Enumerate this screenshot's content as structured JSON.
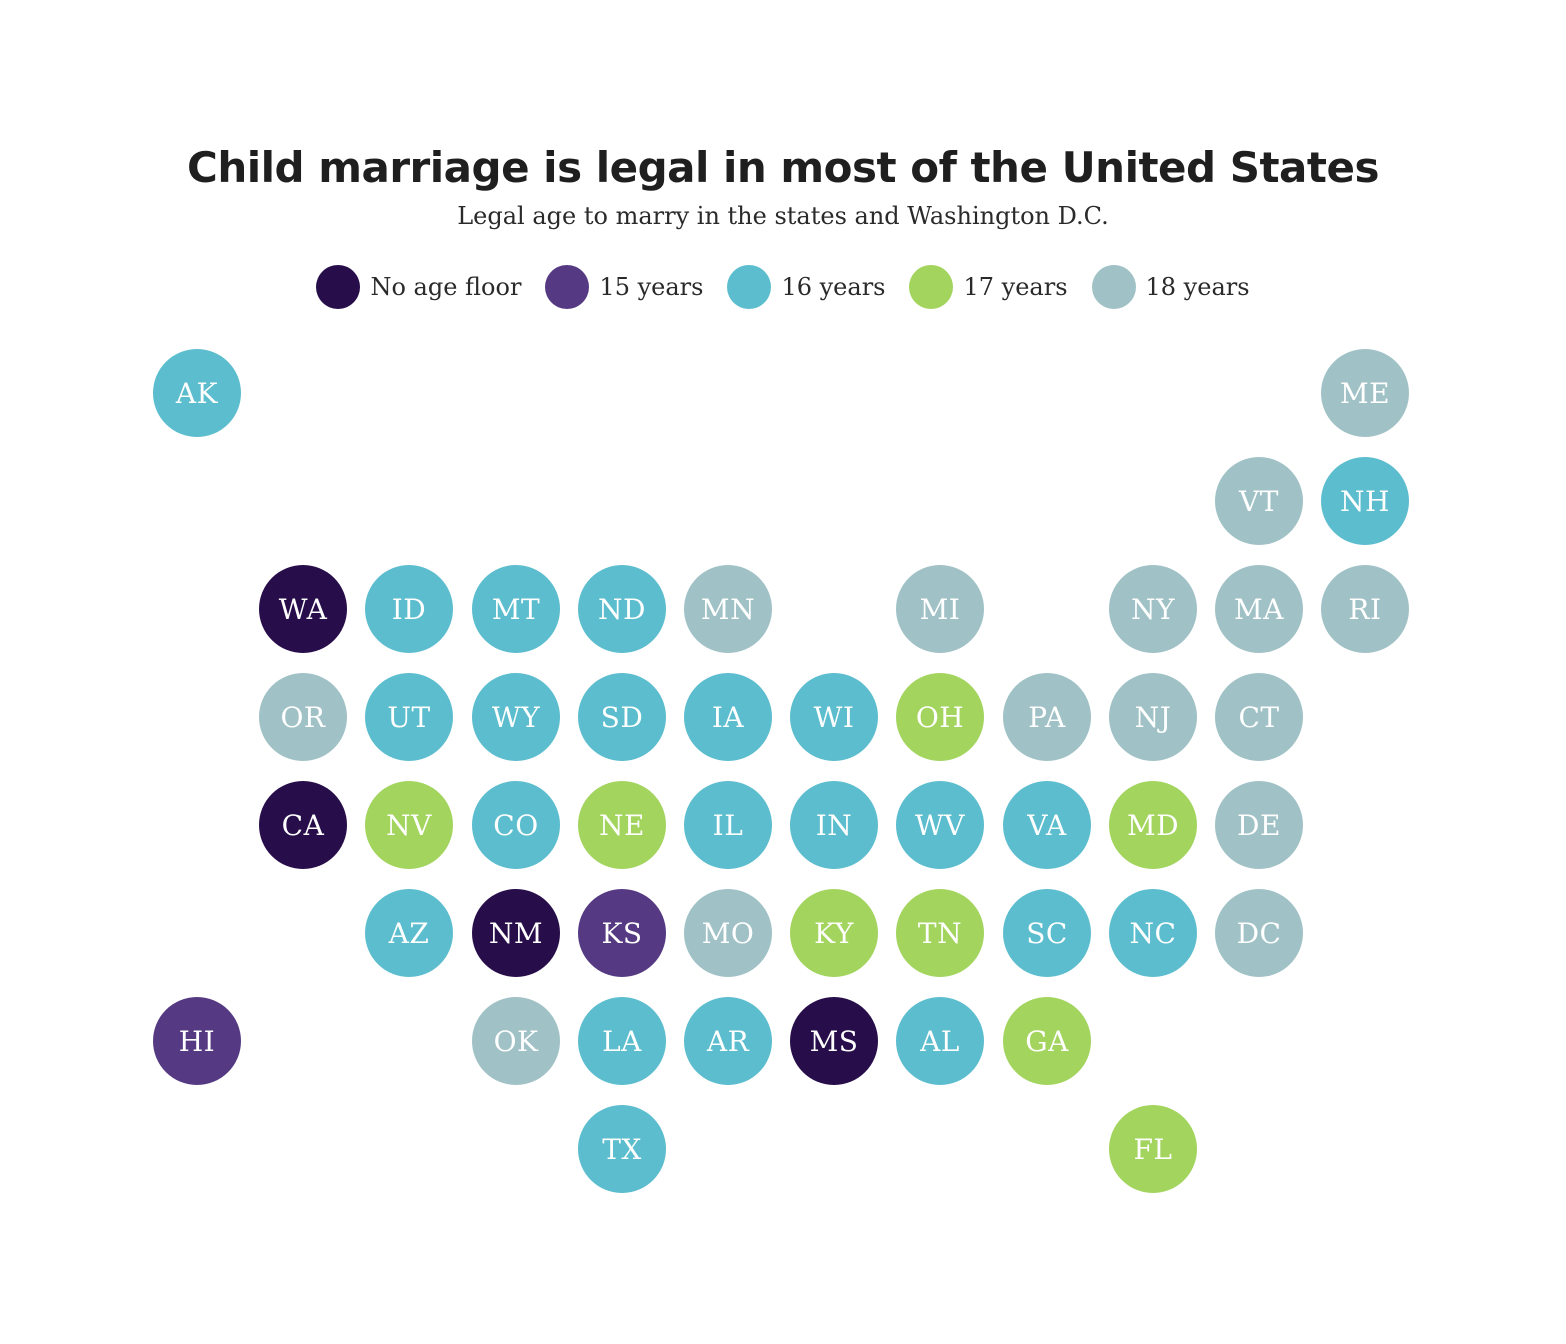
{
  "title": "Child marriage is legal in most of the United States",
  "subtitle": "Legal age to marry in the states and Washington D.C.",
  "colors": {
    "none": "#270d4a",
    "15": "#553a83",
    "16": "#5bbdce",
    "17": "#a2d45e",
    "18": "#a0c2c6"
  },
  "legend": [
    {
      "key": "none",
      "label": "No age floor"
    },
    {
      "key": "15",
      "label": "15 years"
    },
    {
      "key": "16",
      "label": "16 years"
    },
    {
      "key": "17",
      "label": "17 years"
    },
    {
      "key": "18",
      "label": "18 years"
    }
  ],
  "states": [
    {
      "abbr": "AK",
      "row": 0,
      "col": 0,
      "age": "16"
    },
    {
      "abbr": "ME",
      "row": 0,
      "col": 11,
      "age": "18"
    },
    {
      "abbr": "VT",
      "row": 1,
      "col": 10,
      "age": "18"
    },
    {
      "abbr": "NH",
      "row": 1,
      "col": 11,
      "age": "16"
    },
    {
      "abbr": "WA",
      "row": 2,
      "col": 1,
      "age": "none"
    },
    {
      "abbr": "ID",
      "row": 2,
      "col": 2,
      "age": "16"
    },
    {
      "abbr": "MT",
      "row": 2,
      "col": 3,
      "age": "16"
    },
    {
      "abbr": "ND",
      "row": 2,
      "col": 4,
      "age": "16"
    },
    {
      "abbr": "MN",
      "row": 2,
      "col": 5,
      "age": "18"
    },
    {
      "abbr": "MI",
      "row": 2,
      "col": 7,
      "age": "18"
    },
    {
      "abbr": "NY",
      "row": 2,
      "col": 9,
      "age": "18"
    },
    {
      "abbr": "MA",
      "row": 2,
      "col": 10,
      "age": "18"
    },
    {
      "abbr": "RI",
      "row": 2,
      "col": 11,
      "age": "18"
    },
    {
      "abbr": "OR",
      "row": 3,
      "col": 1,
      "age": "18"
    },
    {
      "abbr": "UT",
      "row": 3,
      "col": 2,
      "age": "16"
    },
    {
      "abbr": "WY",
      "row": 3,
      "col": 3,
      "age": "16"
    },
    {
      "abbr": "SD",
      "row": 3,
      "col": 4,
      "age": "16"
    },
    {
      "abbr": "IA",
      "row": 3,
      "col": 5,
      "age": "16"
    },
    {
      "abbr": "WI",
      "row": 3,
      "col": 6,
      "age": "16"
    },
    {
      "abbr": "OH",
      "row": 3,
      "col": 7,
      "age": "17"
    },
    {
      "abbr": "PA",
      "row": 3,
      "col": 8,
      "age": "18"
    },
    {
      "abbr": "NJ",
      "row": 3,
      "col": 9,
      "age": "18"
    },
    {
      "abbr": "CT",
      "row": 3,
      "col": 10,
      "age": "18"
    },
    {
      "abbr": "CA",
      "row": 4,
      "col": 1,
      "age": "none"
    },
    {
      "abbr": "NV",
      "row": 4,
      "col": 2,
      "age": "17"
    },
    {
      "abbr": "CO",
      "row": 4,
      "col": 3,
      "age": "16"
    },
    {
      "abbr": "NE",
      "row": 4,
      "col": 4,
      "age": "17"
    },
    {
      "abbr": "IL",
      "row": 4,
      "col": 5,
      "age": "16"
    },
    {
      "abbr": "IN",
      "row": 4,
      "col": 6,
      "age": "16"
    },
    {
      "abbr": "WV",
      "row": 4,
      "col": 7,
      "age": "16"
    },
    {
      "abbr": "VA",
      "row": 4,
      "col": 8,
      "age": "16"
    },
    {
      "abbr": "MD",
      "row": 4,
      "col": 9,
      "age": "17"
    },
    {
      "abbr": "DE",
      "row": 4,
      "col": 10,
      "age": "18"
    },
    {
      "abbr": "AZ",
      "row": 5,
      "col": 2,
      "age": "16"
    },
    {
      "abbr": "NM",
      "row": 5,
      "col": 3,
      "age": "none"
    },
    {
      "abbr": "KS",
      "row": 5,
      "col": 4,
      "age": "15"
    },
    {
      "abbr": "MO",
      "row": 5,
      "col": 5,
      "age": "18"
    },
    {
      "abbr": "KY",
      "row": 5,
      "col": 6,
      "age": "17"
    },
    {
      "abbr": "TN",
      "row": 5,
      "col": 7,
      "age": "17"
    },
    {
      "abbr": "SC",
      "row": 5,
      "col": 8,
      "age": "16"
    },
    {
      "abbr": "NC",
      "row": 5,
      "col": 9,
      "age": "16"
    },
    {
      "abbr": "DC",
      "row": 5,
      "col": 10,
      "age": "18"
    },
    {
      "abbr": "HI",
      "row": 6,
      "col": 0,
      "age": "15"
    },
    {
      "abbr": "OK",
      "row": 6,
      "col": 3,
      "age": "18"
    },
    {
      "abbr": "LA",
      "row": 6,
      "col": 4,
      "age": "16"
    },
    {
      "abbr": "AR",
      "row": 6,
      "col": 5,
      "age": "16"
    },
    {
      "abbr": "MS",
      "row": 6,
      "col": 6,
      "age": "none"
    },
    {
      "abbr": "AL",
      "row": 6,
      "col": 7,
      "age": "16"
    },
    {
      "abbr": "GA",
      "row": 6,
      "col": 8,
      "age": "17"
    },
    {
      "abbr": "TX",
      "row": 7,
      "col": 4,
      "age": "16"
    },
    {
      "abbr": "FL",
      "row": 7,
      "col": 9,
      "age": "17"
    }
  ]
}
